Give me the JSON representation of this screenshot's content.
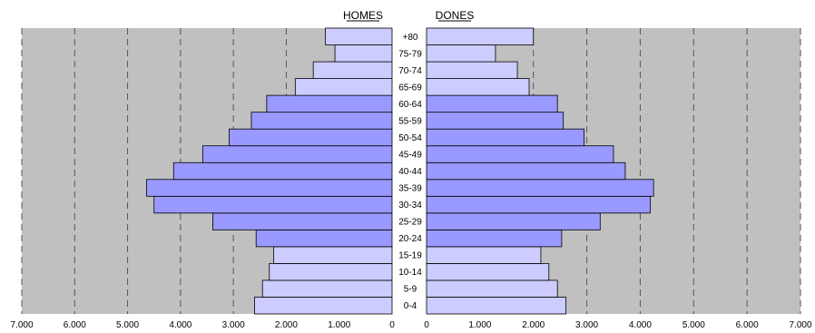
{
  "chart_data": {
    "type": "bar",
    "orientation": "horizontal",
    "layout": "population-pyramid",
    "categories": [
      "0-4",
      "5-9",
      "10-14",
      "15-19",
      "20-24",
      "25-29",
      "30-34",
      "35-39",
      "40-44",
      "45-49",
      "50-54",
      "55-59",
      "60-64",
      "65-69",
      "70-74",
      "75-79",
      "+80"
    ],
    "series": [
      {
        "name": "HOMES",
        "side": "left",
        "values": [
          2600,
          2450,
          2320,
          2240,
          2570,
          3390,
          4500,
          4640,
          4130,
          3580,
          3080,
          2660,
          2370,
          1830,
          1490,
          1080,
          1260
        ]
      },
      {
        "name": "DONES",
        "side": "right",
        "values": [
          2610,
          2450,
          2290,
          2140,
          2530,
          3250,
          4190,
          4250,
          3720,
          3500,
          2950,
          2560,
          2450,
          1920,
          1700,
          1290,
          2000
        ]
      }
    ],
    "xlim": [
      0,
      7000
    ],
    "x_ticks": [
      0,
      1000,
      2000,
      3000,
      4000,
      5000,
      6000,
      7000
    ],
    "x_tick_labels": [
      "0",
      "1.000",
      "2.000",
      "3.000",
      "4.000",
      "5.000",
      "6.000",
      "7.000"
    ],
    "grid": "vertical-dashed",
    "colors": {
      "plot_background": "#c0c0c0",
      "bar_light": "#ccccff",
      "bar_dark": "#9999ff",
      "bar_border": "#000000",
      "grid": "#555555"
    },
    "dark_band_categories": [
      "20-24",
      "25-29",
      "30-34",
      "35-39",
      "40-44",
      "45-49",
      "50-54",
      "55-59",
      "60-64"
    ]
  }
}
